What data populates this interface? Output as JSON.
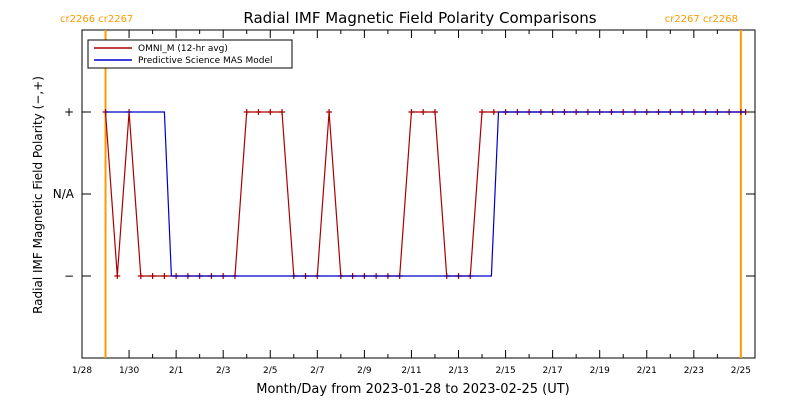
{
  "chart_data": {
    "type": "line",
    "title": "Radial IMF Magnetic Field Polarity Comparisons",
    "xlabel": "Month/Day from 2023-01-28 to 2023-02-25 (UT)",
    "ylabel": "Radial IMF Magnetic Field Polarity (−,+)",
    "x_units": "days since 2023-01-28 00:00 UT",
    "xlim": [
      0,
      28.6
    ],
    "ylim": [
      -2,
      2
    ],
    "x_ticks": [
      {
        "x": 0,
        "label": "1/28"
      },
      {
        "x": 2,
        "label": "1/30"
      },
      {
        "x": 4,
        "label": "2/1"
      },
      {
        "x": 6,
        "label": "2/3"
      },
      {
        "x": 8,
        "label": "2/5"
      },
      {
        "x": 10,
        "label": "2/7"
      },
      {
        "x": 12,
        "label": "2/9"
      },
      {
        "x": 14,
        "label": "2/11"
      },
      {
        "x": 16,
        "label": "2/13"
      },
      {
        "x": 18,
        "label": "2/15"
      },
      {
        "x": 20,
        "label": "2/17"
      },
      {
        "x": 22,
        "label": "2/19"
      },
      {
        "x": 24,
        "label": "2/21"
      },
      {
        "x": 26,
        "label": "2/23"
      },
      {
        "x": 28,
        "label": "2/25"
      }
    ],
    "y_ticks": [
      {
        "y": 1,
        "label": "+"
      },
      {
        "y": 0,
        "label": "N/A"
      },
      {
        "y": -1,
        "label": "−"
      }
    ],
    "carrington_markers": [
      {
        "x": 1.0,
        "label": "cr2266 cr2267",
        "side": "left"
      },
      {
        "x": 28.0,
        "label": "cr2267 cr2268",
        "side": "right"
      }
    ],
    "legend": {
      "position": "top-left"
    },
    "series": [
      {
        "name": "OMNI_M (12-hr avg)",
        "color": "#aa0000",
        "marker": "+",
        "x": [
          1.0,
          1.5,
          2.0,
          2.5,
          3.0,
          3.5,
          4.0,
          4.5,
          5.0,
          5.5,
          6.0,
          6.5,
          7.0,
          7.5,
          8.0,
          8.5,
          9.0,
          9.5,
          10.0,
          10.5,
          11.0,
          11.5,
          12.0,
          12.5,
          13.0,
          13.5,
          14.0,
          14.5,
          15.0,
          15.5,
          16.0,
          16.5,
          17.0,
          17.5,
          18.0,
          18.5,
          19.0,
          19.5,
          20.0,
          20.5,
          21.0,
          21.5,
          22.0,
          22.5,
          23.0,
          23.5,
          24.0,
          24.5,
          25.0,
          25.5,
          26.0,
          26.5,
          27.0,
          27.5,
          28.0,
          28.2
        ],
        "y": [
          1,
          -1,
          1,
          -1,
          -1,
          -1,
          -1,
          -1,
          -1,
          -1,
          -1,
          -1,
          1,
          1,
          1,
          1,
          -1,
          -1,
          -1,
          1,
          -1,
          -1,
          -1,
          -1,
          -1,
          -1,
          1,
          1,
          1,
          -1,
          -1,
          -1,
          1,
          1,
          1,
          1,
          1,
          1,
          1,
          1,
          1,
          1,
          1,
          1,
          1,
          1,
          1,
          1,
          1,
          1,
          1,
          1,
          1,
          1,
          1,
          1
        ]
      },
      {
        "name": "Predictive Science MAS Model",
        "color": "#0000cc",
        "marker": "",
        "x": [
          1.0,
          3.5,
          3.8,
          17.4,
          17.7,
          28.2
        ],
        "y": [
          1,
          1,
          -1,
          -1,
          1,
          1
        ]
      }
    ]
  }
}
